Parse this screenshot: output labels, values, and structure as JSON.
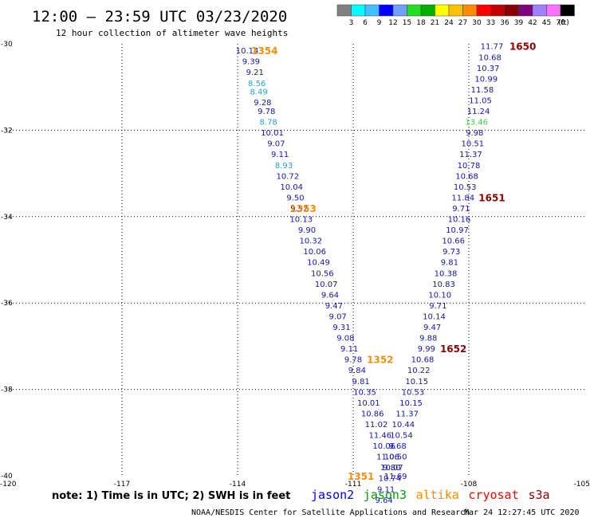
{
  "header": {
    "title": "12:00 – 23:59 UTC 03/23/2020",
    "subtitle": "12 hour collection of altimeter wave heights"
  },
  "scale": {
    "colors": [
      "#808080",
      "#00ffff",
      "#40c0ff",
      "#0000ff",
      "#70a0ff",
      "#20e020",
      "#00b000",
      "#ffff00",
      "#ffc000",
      "#ff8c00",
      "#ff0000",
      "#c00000",
      "#8b0000",
      "#800080",
      "#a080ff",
      "#ff70ff",
      "#000000"
    ],
    "labels": [
      "3",
      "6",
      "9",
      "12",
      "15",
      "18",
      "21",
      "24",
      "27",
      "30",
      "33",
      "36",
      "39",
      "42",
      "45",
      "70",
      "(ft)"
    ]
  },
  "axes": {
    "x_ticks": [
      "-120",
      "-117",
      "-114",
      "-111",
      "-108",
      "-105"
    ],
    "y_ticks": [
      "-30",
      "-32",
      "-34",
      "-36",
      "-38",
      "-40"
    ],
    "x_range": [
      -120,
      -105
    ],
    "y_range": [
      -30,
      -40
    ]
  },
  "tracks": [
    {
      "name": "left",
      "values": [
        "10.14",
        "9.39",
        "9.21",
        "8.56",
        "8.49",
        "9.28",
        "9.78",
        "8.78",
        "10.01",
        "9.07",
        "9.11",
        "8.93",
        "10.72",
        "10.04",
        "9.50",
        "9.52",
        "10.13",
        "9.90",
        "10.32",
        "10.06",
        "10.49",
        "10.56",
        "10.07",
        "9.64",
        "9.47",
        "9.07",
        "9.31",
        "9.08",
        "9.11",
        "9.78",
        "9.84",
        "9.81",
        "10.35",
        "10.01",
        "10.86",
        "11.02",
        "11.46",
        "10.06",
        "11.06",
        "9.80",
        "11.69"
      ],
      "x": [
        -113.75,
        -113.65,
        -113.55,
        -113.5,
        -113.45,
        -113.35,
        -113.25,
        -113.2,
        -113.1,
        -113.0,
        -112.9,
        -112.8,
        -112.7,
        -112.6,
        -112.5,
        -112.4,
        -112.35,
        -112.2,
        -112.1,
        -112.0,
        -111.9,
        -111.8,
        -111.7,
        -111.6,
        -111.5,
        -111.4,
        -111.3,
        -111.2,
        -111.1,
        -111.0,
        -110.9,
        -110.8,
        -110.7,
        -110.6,
        -110.5,
        -110.4,
        -110.3,
        -110.2,
        -110.1,
        -110.0,
        -109.9
      ],
      "y": [
        -30.15,
        -30.4,
        -30.65,
        -30.9,
        -31.1,
        -31.35,
        -31.55,
        -31.8,
        -32.05,
        -32.3,
        -32.55,
        -32.8,
        -33.05,
        -33.3,
        -33.55,
        -33.8,
        -34.05,
        -34.3,
        -34.55,
        -34.8,
        -35.05,
        -35.3,
        -35.55,
        -35.8,
        -36.05,
        -36.3,
        -36.55,
        -36.8,
        -37.05,
        -37.3,
        -37.55,
        -37.8,
        -38.05,
        -38.3,
        -38.55,
        -38.8,
        -39.05,
        -39.3,
        -39.55,
        -39.8,
        -40.0
      ],
      "colors": [
        "#1515b0",
        "#1515b0",
        "#1515b0",
        "#20a8d8",
        "#20a8d8",
        "#1515b0",
        "#1515b0",
        "#20a8d8",
        "#1515b0",
        "#1515b0",
        "#1515b0",
        "#20a8d8",
        "#1515b0",
        "#1515b0",
        "#1515b0",
        "#1515b0",
        "#1515b0",
        "#1515b0",
        "#1515b0",
        "#1515b0",
        "#1515b0",
        "#1515b0",
        "#1515b0",
        "#1515b0",
        "#1515b0",
        "#1515b0",
        "#1515b0",
        "#1515b0",
        "#1515b0",
        "#1515b0",
        "#1515b0",
        "#1515b0",
        "#1515b0",
        "#1515b0",
        "#1515b0",
        "#1515b0",
        "#1515b0",
        "#1515b0",
        "#1515b0",
        "#1515b0",
        "#1515b0"
      ]
    },
    {
      "name": "right",
      "values": [
        "11.77",
        "10.68",
        "10.37",
        "10.99",
        "11.58",
        "11.05",
        "11.24",
        "13.46",
        "9.98",
        "10.51",
        "11.37",
        "10.78",
        "10.68",
        "10.53",
        "11.84",
        "9.71",
        "10.16",
        "10.97",
        "10.66",
        "9.73",
        "9.81",
        "10.38",
        "10.83",
        "10.10",
        "9.71",
        "10.14",
        "9.47",
        "9.88",
        "9.99",
        "10.68",
        "10.22",
        "10.15",
        "10.53",
        "10.15",
        "11.37",
        "10.44",
        "10.54",
        "9.68",
        "10.50",
        "10.07",
        "10.74",
        "9.11",
        "9.64"
      ],
      "x": [
        -107.4,
        -107.45,
        -107.5,
        -107.55,
        -107.65,
        -107.7,
        -107.75,
        -107.8,
        -107.85,
        -107.9,
        -107.95,
        -108.0,
        -108.05,
        -108.1,
        -108.15,
        -108.2,
        -108.25,
        -108.3,
        -108.4,
        -108.45,
        -108.5,
        -108.6,
        -108.65,
        -108.75,
        -108.8,
        -108.9,
        -108.95,
        -109.05,
        -109.1,
        -109.2,
        -109.3,
        -109.35,
        -109.45,
        -109.5,
        -109.6,
        -109.7,
        -109.75,
        -109.85,
        -109.9,
        -110.0,
        -110.05,
        -110.15,
        -110.2
      ],
      "y": [
        -30.05,
        -30.3,
        -30.55,
        -30.8,
        -31.05,
        -31.3,
        -31.55,
        -31.8,
        -32.05,
        -32.3,
        -32.55,
        -32.8,
        -33.05,
        -33.3,
        -33.55,
        -33.8,
        -34.05,
        -34.3,
        -34.55,
        -34.8,
        -35.05,
        -35.3,
        -35.55,
        -35.8,
        -36.05,
        -36.3,
        -36.55,
        -36.8,
        -37.05,
        -37.3,
        -37.55,
        -37.8,
        -38.05,
        -38.3,
        -38.55,
        -38.8,
        -39.05,
        -39.3,
        -39.55,
        -39.8,
        -40.05,
        -40.3,
        -40.55
      ],
      "colors": [
        "#1515b0",
        "#1515b0",
        "#1515b0",
        "#1515b0",
        "#1515b0",
        "#1515b0",
        "#1515b0",
        "#40d040",
        "#1515b0",
        "#1515b0",
        "#1515b0",
        "#1515b0",
        "#1515b0",
        "#1515b0",
        "#1515b0",
        "#1515b0",
        "#1515b0",
        "#1515b0",
        "#1515b0",
        "#1515b0",
        "#1515b0",
        "#1515b0",
        "#1515b0",
        "#1515b0",
        "#1515b0",
        "#1515b0",
        "#1515b0",
        "#1515b0",
        "#1515b0",
        "#1515b0",
        "#1515b0",
        "#1515b0",
        "#1515b0",
        "#1515b0",
        "#1515b0",
        "#1515b0",
        "#1515b0",
        "#1515b0",
        "#1515b0",
        "#1515b0",
        "#1515b0",
        "#1515b0",
        "#1515b0"
      ]
    }
  ],
  "time_labels": [
    {
      "text": "1354",
      "x": -113.3,
      "y": -30.15,
      "color": "#f09010"
    },
    {
      "text": "1353",
      "x": -112.3,
      "y": -33.8,
      "color": "#f09010"
    },
    {
      "text": "1352",
      "x": -110.3,
      "y": -37.3,
      "color": "#f09010"
    },
    {
      "text": "1351",
      "x": -110.8,
      "y": -40.0,
      "color": "#f09010"
    },
    {
      "text": "1650",
      "x": -106.6,
      "y": -30.05,
      "color": "#8b0000"
    },
    {
      "text": "1651",
      "x": -107.4,
      "y": -33.55,
      "color": "#8b0000"
    },
    {
      "text": "1652",
      "x": -108.4,
      "y": -37.05,
      "color": "#8b0000"
    }
  ],
  "footer": {
    "note": "note:  1) Time is in UTC;  2) SWH is in feet",
    "legend": [
      {
        "name": "jason2",
        "color": "#0000ff"
      },
      {
        "name": "jason3",
        "color": "#00a000"
      },
      {
        "name": "altika",
        "color": "#ff8c00"
      },
      {
        "name": "cryosat",
        "color": "#ff0000"
      },
      {
        "name": "s3a",
        "color": "#8b0000"
      }
    ],
    "credit": "NOAA/NESDIS Center for Satellite Applications and Research",
    "timestamp": "Mar 24 12:27:45 UTC 2020"
  }
}
